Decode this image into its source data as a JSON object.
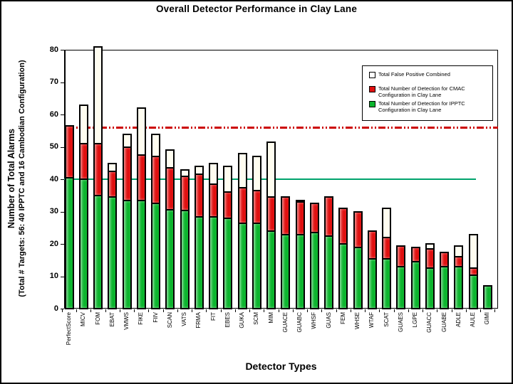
{
  "slide": {
    "background": "#ffffff",
    "border_color": "#000000"
  },
  "chart_data": {
    "type": "bar",
    "stacked": true,
    "title": "Overall Detector Performance in Clay Lane",
    "xlabel": "Detector Types",
    "ylabel_line1": "Number of Total Alarms",
    "ylabel_line2": "(Total # Targets: 56: 40 IPPTC and 16 Cambodian Configuration)",
    "ylim": [
      0,
      80
    ],
    "yticks": [
      0,
      10,
      20,
      30,
      40,
      50,
      60,
      70,
      80
    ],
    "grid": false,
    "legend_position": "upper-right",
    "categories": [
      "PerfectScore",
      "MICV",
      "FOM",
      "EBAT",
      "VMWS",
      "FIKE",
      "FIIV",
      "SCAN",
      "VATS",
      "FRMA",
      "FIT",
      "EBES",
      "GUKA",
      "SCM",
      "MIM",
      "GUACE",
      "GUABC",
      "WHSF",
      "GUAS",
      "FEM",
      "WHSE",
      "WTAF",
      "SCAT",
      "GUAES",
      "LGPE",
      "GUACC",
      "GUABE",
      "ADLE",
      "AULE",
      "GIMI"
    ],
    "series": [
      {
        "name": "Total Number of Detection for IPPTC Configuration in Clay Lane",
        "color": "#0CB52E",
        "values": [
          40,
          39.5,
          34.5,
          34,
          33,
          33,
          32,
          30,
          30,
          28,
          28,
          27.5,
          26,
          26,
          23.5,
          22.5,
          22.5,
          23,
          22,
          19.5,
          18.5,
          15,
          15,
          12.5,
          14,
          12,
          12.5,
          12.5,
          10,
          6.5
        ]
      },
      {
        "name": "Total Number of Detection for CMAC Configuration in Clay Lane",
        "color": "#E01010",
        "values": [
          16,
          11,
          16,
          8,
          16.5,
          14,
          14.5,
          13,
          10.5,
          13,
          10,
          8,
          11,
          10,
          10.5,
          11.5,
          10,
          9,
          12,
          11,
          11,
          8.5,
          6.5,
          6.5,
          4.5,
          6,
          4.5,
          3,
          2,
          0
        ]
      },
      {
        "name": "Total False Positive Combined",
        "color": "#FFFDF0",
        "values": [
          0,
          12,
          30,
          2.5,
          4,
          14.5,
          7,
          5.5,
          2,
          2.5,
          6.5,
          8,
          10.5,
          10.5,
          17,
          0,
          0.5,
          0,
          0,
          0,
          0,
          0,
          9,
          0,
          0,
          1.5,
          0,
          3.5,
          10.5,
          0
        ]
      }
    ],
    "reference_lines": [
      {
        "value": 56,
        "style": "dash-dot-dot",
        "color": "#CC0000"
      },
      {
        "value": 40,
        "style": "solid",
        "color": "#00A36C"
      }
    ],
    "legend_items": [
      {
        "label": "Total False Positive Combined",
        "color": "#FFFFFF"
      },
      {
        "label": "Total Number of Detection for CMAC Configuration in Clay Lane",
        "color": "#E01010"
      },
      {
        "label": "Total Number of Detection for IPPTC Configuration in Clay Lane",
        "color": "#0CB52E"
      }
    ]
  }
}
